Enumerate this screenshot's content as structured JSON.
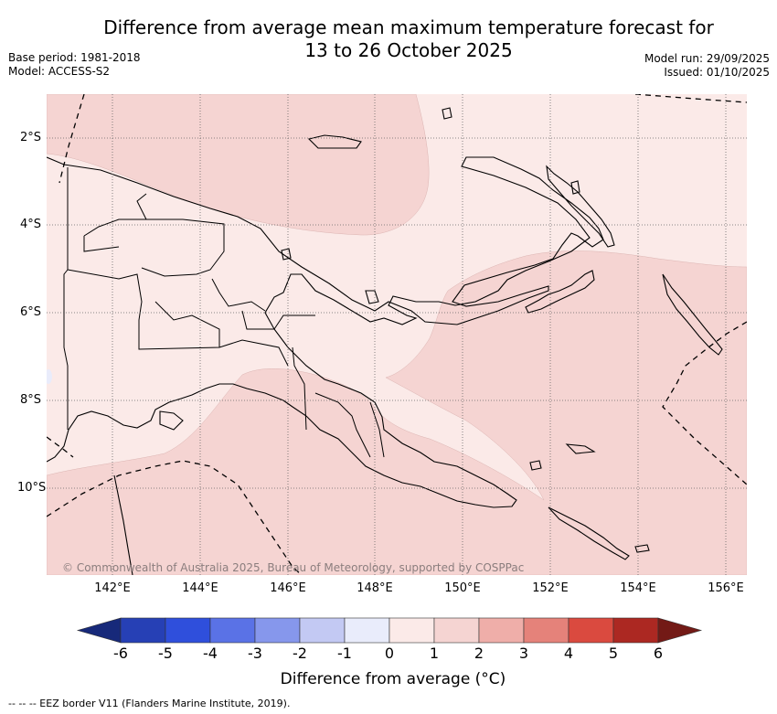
{
  "title_line1": "Difference from average mean maximum temperature forecast for",
  "title_line2": "13 to 26 October 2025",
  "base_period": "Base period: 1981-2018",
  "model": "Model: ACCESS-S2",
  "model_run": "Model run: 29/09/2025",
  "issued": "Issued: 01/10/2025",
  "lon_ticks": [
    "142°E",
    "144°E",
    "146°E",
    "148°E",
    "150°E",
    "152°E",
    "154°E",
    "156°E"
  ],
  "lat_ticks": [
    "2°S",
    "4°S",
    "6°S",
    "8°S",
    "10°S"
  ],
  "copyright": "© Commonwealth of Australia 2025, Bureau of Meteorology, supported by COSPPac",
  "colorbar": {
    "label": "Difference from average (°C)",
    "ticks": [
      "-6",
      "-5",
      "-4",
      "-3",
      "-2",
      "-1",
      "0",
      "1",
      "2",
      "3",
      "4",
      "5",
      "6"
    ],
    "colors": [
      "#17297a",
      "#2640b5",
      "#2f4fdc",
      "#5a72e6",
      "#8697ec",
      "#c3c9f3",
      "#e9ecfb",
      "#fbeae8",
      "#f5d4d2",
      "#efaea9",
      "#e5827a",
      "#da4a3f",
      "#ac2822",
      "#731a16"
    ]
  },
  "footnote": "--  --  -- EEZ border V11 (Flanders Marine Institute, 2019).",
  "colors": {
    "anomaly_0_1": "#fbeae8",
    "anomaly_1_2": "#f5d4d2"
  }
}
